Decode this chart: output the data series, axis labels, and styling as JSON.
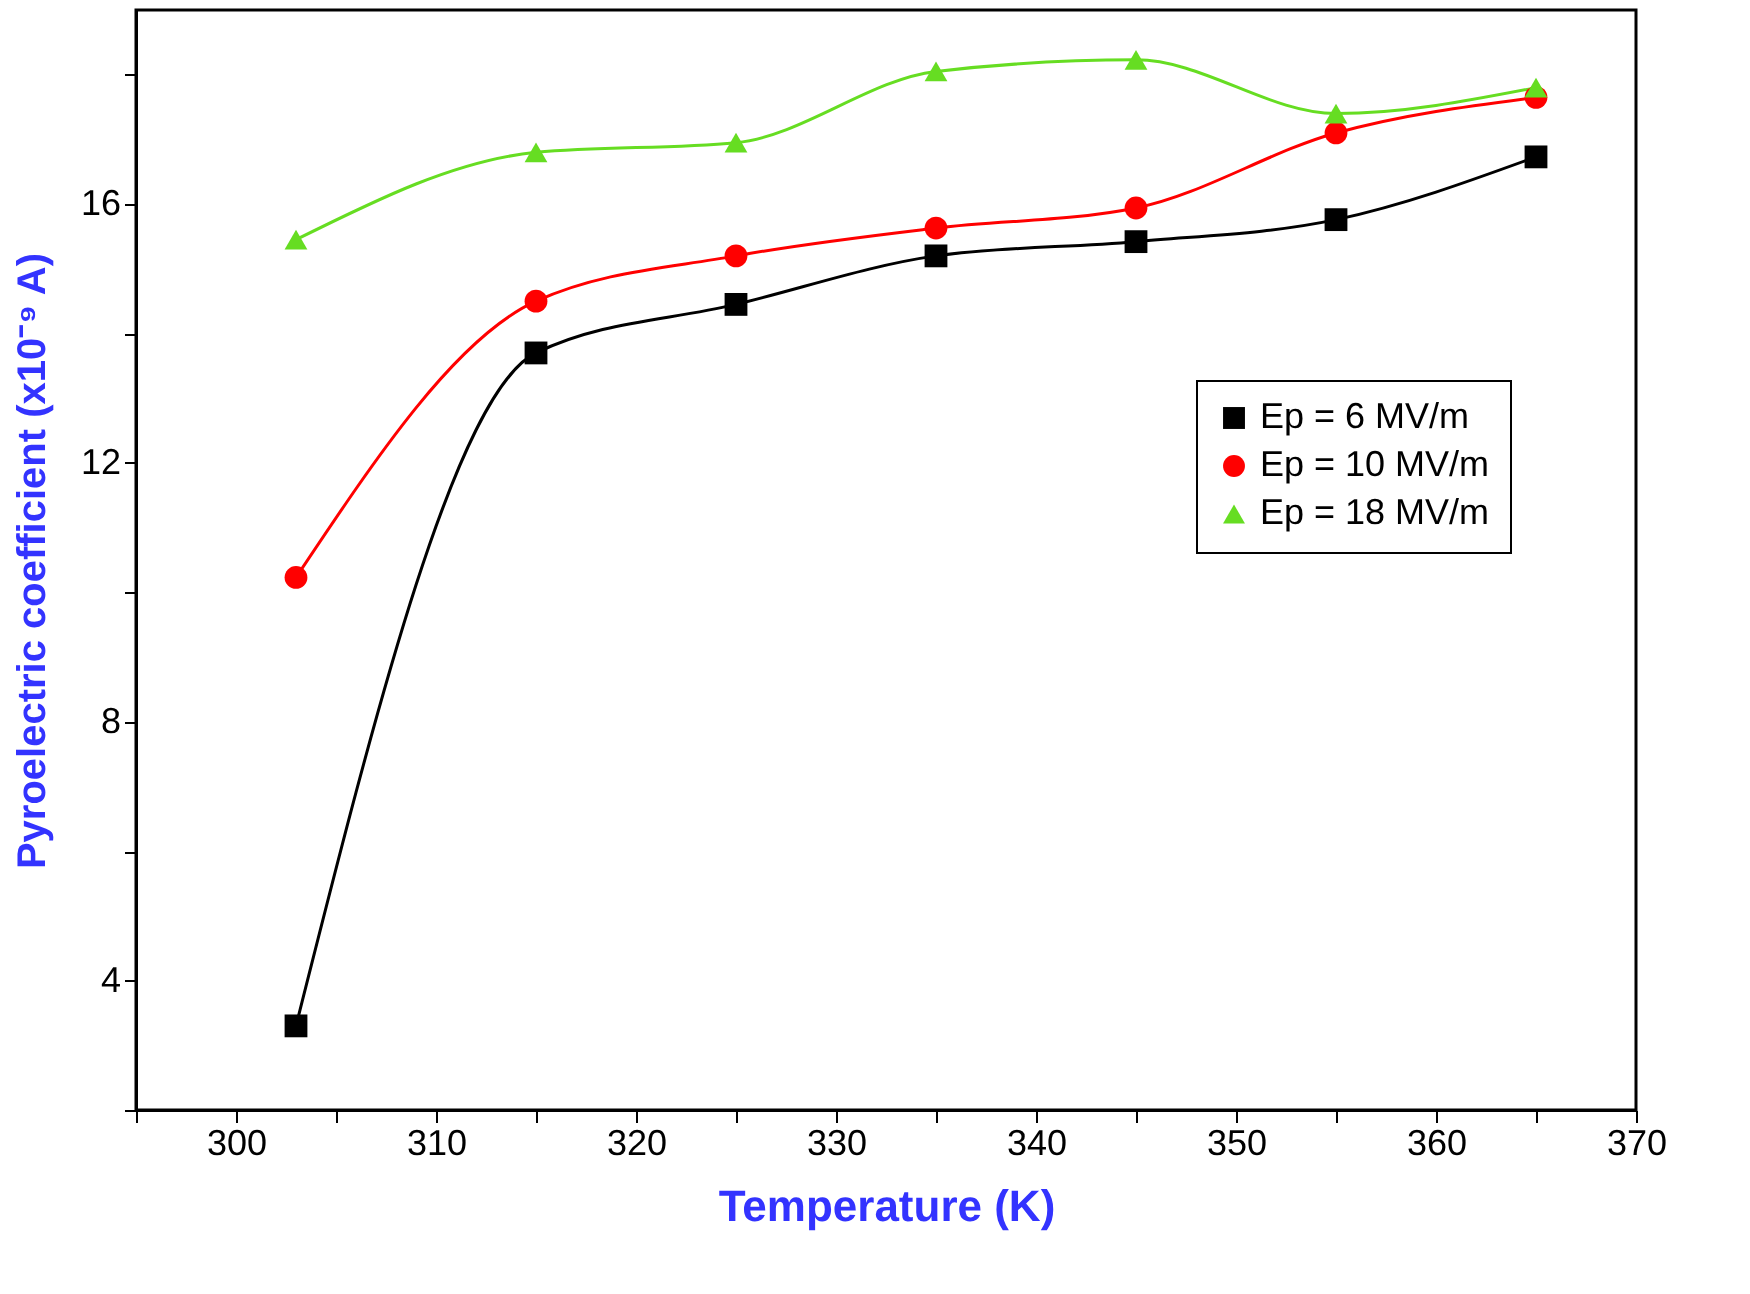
{
  "chart_data": {
    "type": "line",
    "xlabel": "Temperature (K)",
    "ylabel": "Pyroelectric coefficient (x10⁻⁹ A)",
    "x": [
      303,
      315,
      325,
      335,
      345,
      355,
      365
    ],
    "series": [
      {
        "name": "Ep = 6 MV/m",
        "color": "#000000",
        "marker": "square",
        "values": [
          3.3,
          13.7,
          14.45,
          15.2,
          15.42,
          15.76,
          16.73
        ]
      },
      {
        "name": "Ep = 10 MV/m",
        "color": "#ff0000",
        "marker": "circle",
        "values": [
          10.23,
          14.5,
          15.2,
          15.63,
          15.94,
          17.1,
          17.65
        ]
      },
      {
        "name": "Ep = 18 MV/m",
        "color": "#66dd22",
        "marker": "triangle",
        "values": [
          15.45,
          16.8,
          16.95,
          18.05,
          18.23,
          17.4,
          17.8
        ]
      }
    ],
    "xlim": [
      295,
      370
    ],
    "xticks": [
      {
        "value": 295,
        "label": null
      },
      300,
      {
        "value": 305,
        "label": null
      },
      310,
      {
        "value": 315,
        "label": null
      },
      320,
      {
        "value": 325,
        "label": null
      },
      330,
      {
        "value": 335,
        "label": null
      },
      340,
      {
        "value": 345,
        "label": null
      },
      350,
      {
        "value": 355,
        "label": null
      },
      360,
      {
        "value": 365,
        "label": null
      },
      370
    ],
    "ylim": [
      2,
      19
    ],
    "yticks": [
      {
        "value": 2,
        "label": null
      },
      4,
      {
        "value": 6,
        "label": null
      },
      8,
      {
        "value": 10,
        "label": null
      },
      12,
      {
        "value": 14,
        "label": null
      },
      16,
      {
        "value": 18,
        "label": null
      }
    ],
    "grid": false,
    "legend": "right",
    "line_style": "solid"
  }
}
